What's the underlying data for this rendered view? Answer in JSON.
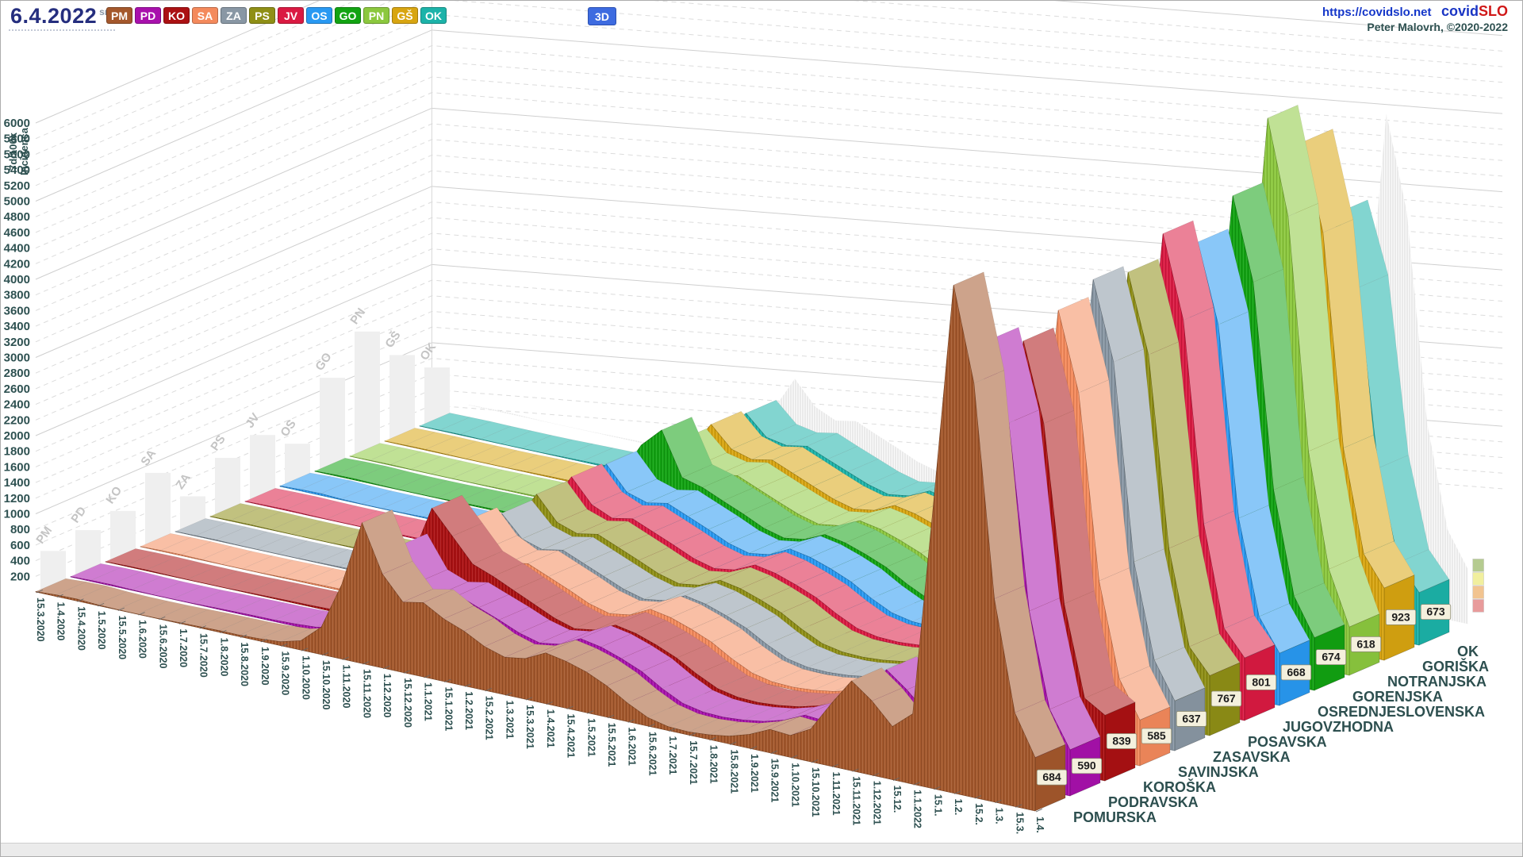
{
  "header": {
    "date": "6.4.2022",
    "weekday_abbr": "sre",
    "mode_button_label": "3D",
    "site_url": "https://covidslo.net",
    "brand_covid": "covid",
    "brand_slo": "SLO",
    "credit": "Peter Malovrh, ©2020-2022"
  },
  "legend": {
    "items": [
      {
        "code": "PM",
        "color": "#a4582c"
      },
      {
        "code": "PD",
        "color": "#a811ac"
      },
      {
        "code": "KO",
        "color": "#ab1113"
      },
      {
        "code": "SA",
        "color": "#f48a5c"
      },
      {
        "code": "ZA",
        "color": "#8997a4"
      },
      {
        "code": "PS",
        "color": "#8f8f16"
      },
      {
        "code": "JV",
        "color": "#da1a42"
      },
      {
        "code": "OS",
        "color": "#2999f2"
      },
      {
        "code": "GO",
        "color": "#12a312"
      },
      {
        "code": "PN",
        "color": "#8cc83e"
      },
      {
        "code": "GŠ",
        "color": "#d8a511"
      },
      {
        "code": "OK",
        "color": "#1cb3a9"
      }
    ]
  },
  "chart_data": {
    "type": "area",
    "projection": "3d-ridgeline",
    "ylabel_line1": "7d/100k",
    "ylabel_line2": "Incidenca",
    "y_axis": {
      "min": 0,
      "max": 6000,
      "tick_min": 200,
      "tick_max": 6000,
      "tick_step": 200,
      "grid": "dashed, solid every 1000"
    },
    "x_tick_labels": [
      "15.3.2020",
      "1.4.2020",
      "15.4.2020",
      "1.5.2020",
      "15.5.2020",
      "1.6.2020",
      "15.6.2020",
      "1.7.2020",
      "15.7.2020",
      "1.8.2020",
      "15.8.2020",
      "1.9.2020",
      "15.9.2020",
      "1.10.2020",
      "15.10.2020",
      "1.11.2020",
      "15.11.2020",
      "1.12.2020",
      "15.12.2020",
      "1.1.2021",
      "15.1.2021",
      "1.2.2021",
      "15.2.2021",
      "1.3.2021",
      "15.3.2021",
      "1.4.2021",
      "15.4.2021",
      "1.5.2021",
      "15.5.2021",
      "1.6.2021",
      "15.6.2021",
      "1.7.2021",
      "15.7.2021",
      "1.8.2021",
      "15.8.2021",
      "1.9.2021",
      "15.9.2021",
      "1.10.2021",
      "15.10.2021",
      "1.11.2021",
      "15.11.2021",
      "1.12.2021",
      "15.12.",
      "1.1.2022",
      "15.1.",
      "1.2.",
      "15.2.",
      "1.3.",
      "15.3.",
      "1.4."
    ],
    "regions": [
      {
        "code": "PM",
        "name": "POMURSKA",
        "color": "#a4582c",
        "end_value": 684,
        "values": [
          5,
          20,
          25,
          10,
          4,
          3,
          4,
          10,
          15,
          20,
          20,
          30,
          50,
          120,
          350,
          950,
          1800,
          1200,
          900,
          950,
          800,
          700,
          560,
          480,
          520,
          650,
          600,
          520,
          400,
          240,
          110,
          50,
          40,
          60,
          100,
          180,
          300,
          280,
          420,
          800,
          1150,
          950,
          680,
          900,
          3600,
          6500,
          5300,
          2600,
          1200,
          684
        ]
      },
      {
        "code": "PD",
        "name": "PODRAVSKA",
        "color": "#a811ac",
        "end_value": 590,
        "values": [
          4,
          12,
          15,
          8,
          3,
          3,
          4,
          10,
          14,
          18,
          20,
          28,
          45,
          100,
          300,
          800,
          1300,
          900,
          800,
          850,
          750,
          650,
          540,
          470,
          510,
          640,
          590,
          500,
          390,
          230,
          100,
          45,
          35,
          55,
          95,
          170,
          290,
          270,
          400,
          780,
          1100,
          900,
          650,
          820,
          3100,
          5600,
          4600,
          2250,
          1050,
          590
        ]
      },
      {
        "code": "KO",
        "name": "KOROŠKA",
        "color": "#ab1113",
        "end_value": 839,
        "values": [
          2,
          8,
          10,
          5,
          2,
          2,
          3,
          8,
          12,
          15,
          18,
          25,
          40,
          90,
          280,
          900,
          1600,
          1300,
          1000,
          900,
          780,
          660,
          540,
          460,
          500,
          620,
          570,
          480,
          370,
          220,
          95,
          40,
          30,
          50,
          90,
          160,
          270,
          250,
          380,
          750,
          1050,
          850,
          620,
          790,
          3000,
          5400,
          4400,
          2150,
          1000,
          839
        ]
      },
      {
        "code": "SA",
        "name": "SAVINJSKA",
        "color": "#f48a5c",
        "end_value": 585,
        "values": [
          3,
          10,
          13,
          7,
          3,
          3,
          4,
          9,
          13,
          17,
          19,
          27,
          44,
          95,
          290,
          820,
          1250,
          950,
          820,
          870,
          760,
          650,
          530,
          460,
          500,
          630,
          580,
          490,
          380,
          225,
          98,
          42,
          33,
          52,
          92,
          165,
          280,
          260,
          390,
          770,
          1100,
          880,
          640,
          800,
          3100,
          5600,
          4600,
          2250,
          1050,
          585
        ]
      },
      {
        "code": "ZA",
        "name": "ZASAVSKA",
        "color": "#8997a4",
        "end_value": 637,
        "values": [
          2,
          6,
          8,
          4,
          2,
          2,
          3,
          7,
          10,
          14,
          16,
          22,
          38,
          85,
          260,
          780,
          1150,
          880,
          800,
          850,
          740,
          630,
          520,
          450,
          490,
          610,
          560,
          470,
          365,
          215,
          90,
          38,
          30,
          48,
          88,
          155,
          265,
          245,
          375,
          740,
          1050,
          840,
          610,
          780,
          3200,
          5800,
          4800,
          2300,
          1100,
          637
        ]
      },
      {
        "code": "PS",
        "name": "POSAVSKA",
        "color": "#8f8f16",
        "end_value": 767,
        "values": [
          2,
          7,
          9,
          5,
          2,
          2,
          3,
          8,
          11,
          15,
          17,
          24,
          40,
          88,
          270,
          800,
          1200,
          900,
          810,
          860,
          750,
          640,
          525,
          455,
          495,
          615,
          565,
          475,
          370,
          218,
          92,
          40,
          31,
          50,
          90,
          158,
          270,
          250,
          380,
          750,
          1070,
          860,
          620,
          780,
          3150,
          5700,
          4700,
          2280,
          1080,
          767
        ]
      },
      {
        "code": "JV",
        "name": "JUGOVZHODNA",
        "color": "#da1a42",
        "end_value": 801,
        "values": [
          3,
          9,
          11,
          6,
          3,
          3,
          4,
          9,
          13,
          16,
          18,
          26,
          42,
          92,
          285,
          810,
          1230,
          930,
          815,
          865,
          755,
          645,
          528,
          458,
          498,
          618,
          568,
          478,
          372,
          220,
          94,
          41,
          32,
          51,
          91,
          160,
          275,
          255,
          385,
          760,
          1090,
          870,
          630,
          790,
          3300,
          6000,
          4950,
          2400,
          1120,
          801
        ]
      },
      {
        "code": "OS",
        "name": "OSREDNJESLOVENSKA",
        "color": "#2999f2",
        "end_value": 668,
        "values": [
          6,
          18,
          22,
          10,
          4,
          4,
          5,
          12,
          17,
          22,
          24,
          32,
          52,
          110,
          320,
          850,
          1200,
          900,
          820,
          870,
          760,
          650,
          530,
          460,
          500,
          630,
          580,
          490,
          380,
          225,
          98,
          44,
          35,
          56,
          98,
          175,
          295,
          275,
          410,
          790,
          1120,
          900,
          660,
          830,
          3150,
          5700,
          4700,
          2280,
          1080,
          668
        ]
      },
      {
        "code": "GO",
        "name": "GORENJSKA",
        "color": "#12a312",
        "end_value": 674,
        "values": [
          4,
          12,
          15,
          8,
          3,
          3,
          4,
          10,
          14,
          18,
          20,
          28,
          46,
          100,
          300,
          820,
          1250,
          1500,
          950,
          880,
          765,
          655,
          532,
          462,
          502,
          622,
          572,
          482,
          375,
          222,
          95,
          42,
          33,
          52,
          92,
          162,
          278,
          258,
          390,
          765,
          1100,
          880,
          640,
          800,
          3350,
          6100,
          5050,
          2450,
          1150,
          674
        ]
      },
      {
        "code": "PN",
        "name": "NOTRANJSKA",
        "color": "#8cc83e",
        "end_value": 618,
        "values": [
          1,
          5,
          7,
          4,
          2,
          2,
          3,
          7,
          10,
          13,
          15,
          20,
          35,
          80,
          250,
          750,
          1100,
          850,
          790,
          840,
          730,
          620,
          515,
          445,
          485,
          605,
          555,
          465,
          360,
          212,
          88,
          36,
          28,
          46,
          85,
          150,
          260,
          240,
          370,
          730,
          1040,
          830,
          600,
          760,
          3800,
          6900,
          5700,
          2750,
          1300,
          618
        ]
      },
      {
        "code": "GŠ",
        "name": "GORIŠKA",
        "color": "#d8a511",
        "end_value": 923,
        "values": [
          2,
          6,
          8,
          5,
          2,
          2,
          3,
          8,
          11,
          14,
          16,
          22,
          38,
          84,
          260,
          770,
          1130,
          870,
          795,
          845,
          735,
          625,
          518,
          448,
          488,
          608,
          558,
          468,
          362,
          214,
          89,
          38,
          29,
          47,
          86,
          152,
          262,
          242,
          372,
          735,
          1050,
          840,
          610,
          770,
          3500,
          6400,
          5300,
          2600,
          1300,
          923
        ]
      },
      {
        "code": "OK",
        "name": "OK",
        "color": "#1cb3a9",
        "end_value": 673,
        "values": [
          2,
          5,
          7,
          4,
          2,
          2,
          3,
          8,
          12,
          16,
          18,
          24,
          40,
          86,
          255,
          740,
          1080,
          830,
          780,
          830,
          720,
          615,
          510,
          440,
          480,
          600,
          550,
          460,
          355,
          210,
          87,
          36,
          28,
          46,
          84,
          150,
          258,
          240,
          368,
          725,
          1030,
          820,
          600,
          760,
          2900,
          5300,
          4400,
          2150,
          1000,
          673
        ]
      }
    ],
    "backdrop": {
      "label": "national silhouette",
      "color": "#e6e6e6",
      "values": [
        4,
        12,
        15,
        8,
        3,
        3,
        4,
        10,
        14,
        18,
        20,
        27,
        45,
        100,
        300,
        820,
        1250,
        950,
        830,
        880,
        765,
        655,
        535,
        465,
        505,
        625,
        575,
        485,
        378,
        224,
        96,
        42,
        33,
        53,
        93,
        168,
        285,
        262,
        395,
        770,
        1100,
        885,
        645,
        810,
        3300,
        6300,
        5100,
        2450,
        1150,
        700
      ]
    },
    "wall_bars": {
      "color": "#efefef",
      "label_color": "#c4c4c4",
      "labels": [
        "PM",
        "PD",
        "KO",
        "SA",
        "ZA",
        "PS",
        "JV",
        "OS",
        "GO",
        "PN",
        "GŠ",
        "OK"
      ],
      "values": [
        500,
        570,
        620,
        900,
        430,
        715,
        810,
        520,
        1140,
        1520,
        1050,
        715
      ]
    },
    "end_scale_colors": [
      "#e89b9b",
      "#f2c490",
      "#f1ef9e",
      "#b5cb90"
    ]
  }
}
